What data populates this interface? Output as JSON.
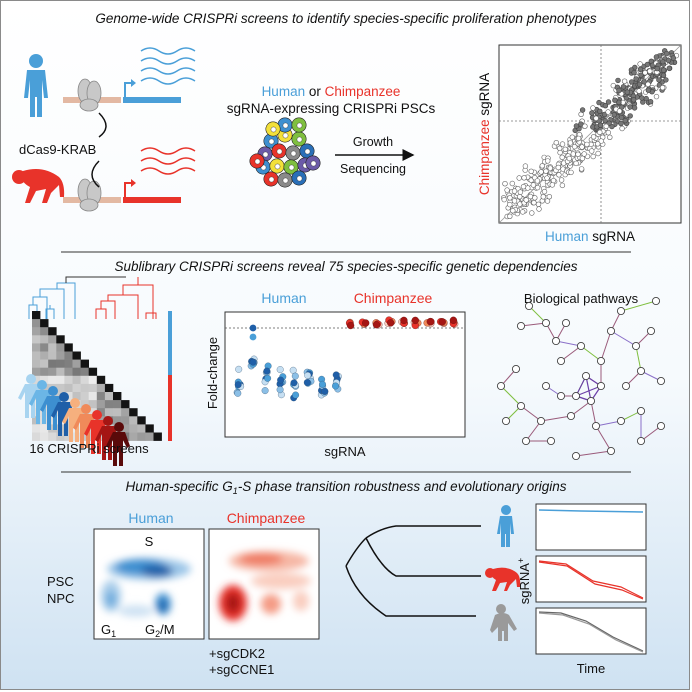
{
  "panel1": {
    "title": "Genome-wide CRISPRi screens to identify species-specific proliferation phenotypes",
    "dcas9_label": "dCas9-KRAB",
    "species_human": "Human",
    "species_or": "or",
    "species_chimp": "Chimpanzee",
    "cells_line": "sgRNA-expressing CRISPRi PSCs",
    "step_growth": "Growth",
    "step_sequencing": "Sequencing",
    "scatter_y_species": "Chimpanzee",
    "scatter_y_rest": "sgRNA",
    "scatter_x_species": "Human",
    "scatter_x_rest": "sgRNA"
  },
  "panel2": {
    "title": "Sublibrary CRISPRi screens reveal 75 species-specific genetic dependencies",
    "screens_caption": "16 CRISPRi screens",
    "strip_human": "Human",
    "strip_chimp": "Chimpanzee",
    "strip_ylabel": "Fold-change",
    "strip_xlabel": "sgRNA",
    "pathways_title": "Biological pathways"
  },
  "panel3": {
    "title_pre": "Human-specific G",
    "title_sub": "1",
    "title_post": "-S phase transition robustness and evolutionary origins",
    "flow_human": "Human",
    "flow_chimp": "Chimpanzee",
    "label_psc": "PSC",
    "label_npc": "NPC",
    "label_s": "S",
    "label_g1": "G",
    "label_g1_sub": "1",
    "label_g2m": "G",
    "label_g2m_sub": "2",
    "label_g2m_rest": "/M",
    "treat_1": "+sgCDK2",
    "treat_2": "+sgCCNE1",
    "ylabel_main": "sgRNA",
    "ylabel_sup": "+",
    "xlabel": "Time"
  },
  "colors": {
    "human_blue": "#4a9fd8",
    "chimp_red": "#e8332a",
    "gray_cell": "#9a9a9a"
  },
  "icons": [
    "human-figure",
    "chimpanzee-figure",
    "gorilla-figure",
    "dcas9-protein",
    "cell-cluster"
  ]
}
